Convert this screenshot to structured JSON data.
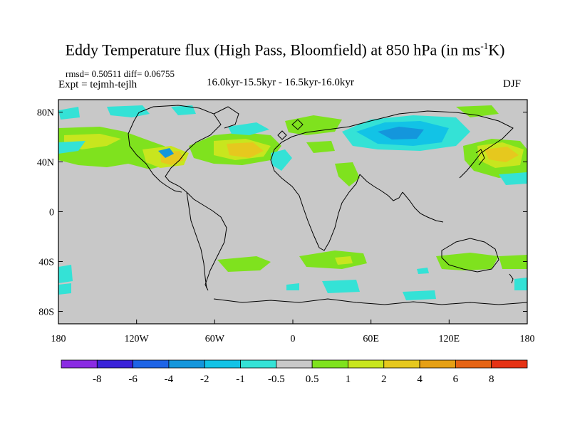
{
  "title_main": "Eddy Temperature flux (High Pass, Bloomfield) at 850 hPa (in ms",
  "title_sup": "-1",
  "title_tail": "K)",
  "stats": "rmsd= 0.50511 diff= 0.06755",
  "expt": "Expt = tejmh-tejlh",
  "period": "16.0kyr-15.5kyr - 16.5kyr-16.0kyr",
  "season": "DJF",
  "map": {
    "lon_range": [
      -180,
      180
    ],
    "lat_range": [
      -90,
      90
    ],
    "background": "#c8c8c8",
    "lat_ticks": [
      {
        "value": 80,
        "label": "80N"
      },
      {
        "value": 40,
        "label": "40N"
      },
      {
        "value": 0,
        "label": "0"
      },
      {
        "value": -40,
        "label": "40S"
      },
      {
        "value": -80,
        "label": "80S"
      }
    ],
    "lon_ticks": [
      {
        "value": -180,
        "label": "180"
      },
      {
        "value": -120,
        "label": "120W"
      },
      {
        "value": -60,
        "label": "60W"
      },
      {
        "value": 0,
        "label": "0"
      },
      {
        "value": 60,
        "label": "60E"
      },
      {
        "value": 120,
        "label": "120E"
      },
      {
        "value": 180,
        "label": "180"
      }
    ]
  },
  "colorbar": {
    "colors": [
      "#8a2be2",
      "#3a22d9",
      "#1e64e6",
      "#1496dc",
      "#12c3e6",
      "#34e2d6",
      "#c8c8c8",
      "#7fe21e",
      "#c8e61e",
      "#e6c81e",
      "#e6a014",
      "#e66414",
      "#e63214"
    ],
    "labels": [
      "-8",
      "-6",
      "-4",
      "-2",
      "-1",
      "-0.5",
      "0.5",
      "1",
      "2",
      "4",
      "6",
      "8"
    ]
  }
}
